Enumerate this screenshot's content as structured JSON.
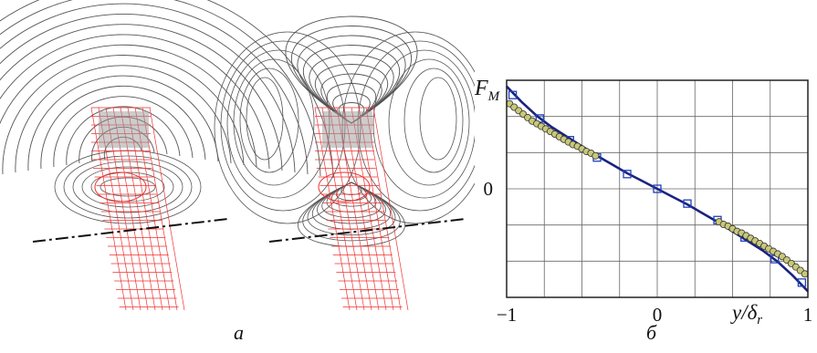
{
  "captions": {
    "a": "а",
    "b": "б"
  },
  "chart_data": {
    "type": "scatter",
    "y_label_main": "F",
    "y_label_sub": "M",
    "x_label_main": "y/δ",
    "x_label_sub": "r",
    "x_ticks": [
      "−1",
      "0",
      "1"
    ],
    "y_ticks": [
      "0"
    ],
    "xlim": [
      -1,
      1
    ],
    "ylim": [
      -1.25,
      1.25
    ],
    "grid": true,
    "series": [
      {
        "marker": "line",
        "color": "#1a237e",
        "x": [
          -1.0,
          -0.9,
          -0.8,
          -0.7,
          -0.6,
          -0.5,
          -0.4,
          -0.3,
          -0.2,
          -0.1,
          0.0,
          0.1,
          0.2,
          0.3,
          0.4,
          0.5,
          0.6,
          0.7,
          0.8,
          0.9,
          1.0
        ],
        "y": [
          1.18,
          1.0,
          0.84,
          0.71,
          0.6,
          0.49,
          0.38,
          0.28,
          0.18,
          0.09,
          0.0,
          -0.09,
          -0.18,
          -0.28,
          -0.38,
          -0.49,
          -0.6,
          -0.71,
          -0.84,
          -1.0,
          -1.18
        ]
      },
      {
        "marker": "square",
        "color": "#1f3fbf",
        "x": [
          -0.96,
          -0.78,
          -0.58,
          -0.4,
          -0.2,
          0.0,
          0.2,
          0.4,
          0.58,
          0.78,
          0.96
        ],
        "y": [
          1.08,
          0.81,
          0.56,
          0.36,
          0.17,
          0.0,
          -0.17,
          -0.36,
          -0.56,
          -0.81,
          -1.08
        ]
      },
      {
        "marker": "circle",
        "color": "#c8c87a",
        "x": [
          -0.98,
          -0.95,
          -0.92,
          -0.89,
          -0.86,
          -0.83,
          -0.8,
          -0.77,
          -0.74,
          -0.71,
          -0.68,
          -0.65,
          -0.62,
          -0.59,
          -0.56,
          -0.53,
          -0.5,
          -0.47,
          -0.44,
          -0.41,
          0.41,
          0.44,
          0.47,
          0.5,
          0.53,
          0.56,
          0.59,
          0.62,
          0.65,
          0.68,
          0.71,
          0.74,
          0.77,
          0.8,
          0.83,
          0.86,
          0.89,
          0.92,
          0.95,
          0.98
        ],
        "y": [
          0.98,
          0.94,
          0.9,
          0.86,
          0.82,
          0.78,
          0.75,
          0.72,
          0.69,
          0.66,
          0.63,
          0.6,
          0.57,
          0.54,
          0.51,
          0.49,
          0.46,
          0.43,
          0.41,
          0.38,
          -0.38,
          -0.41,
          -0.43,
          -0.46,
          -0.49,
          -0.51,
          -0.54,
          -0.57,
          -0.6,
          -0.63,
          -0.66,
          -0.69,
          -0.72,
          -0.75,
          -0.78,
          -0.82,
          -0.86,
          -0.9,
          -0.94,
          -0.98
        ]
      }
    ]
  }
}
